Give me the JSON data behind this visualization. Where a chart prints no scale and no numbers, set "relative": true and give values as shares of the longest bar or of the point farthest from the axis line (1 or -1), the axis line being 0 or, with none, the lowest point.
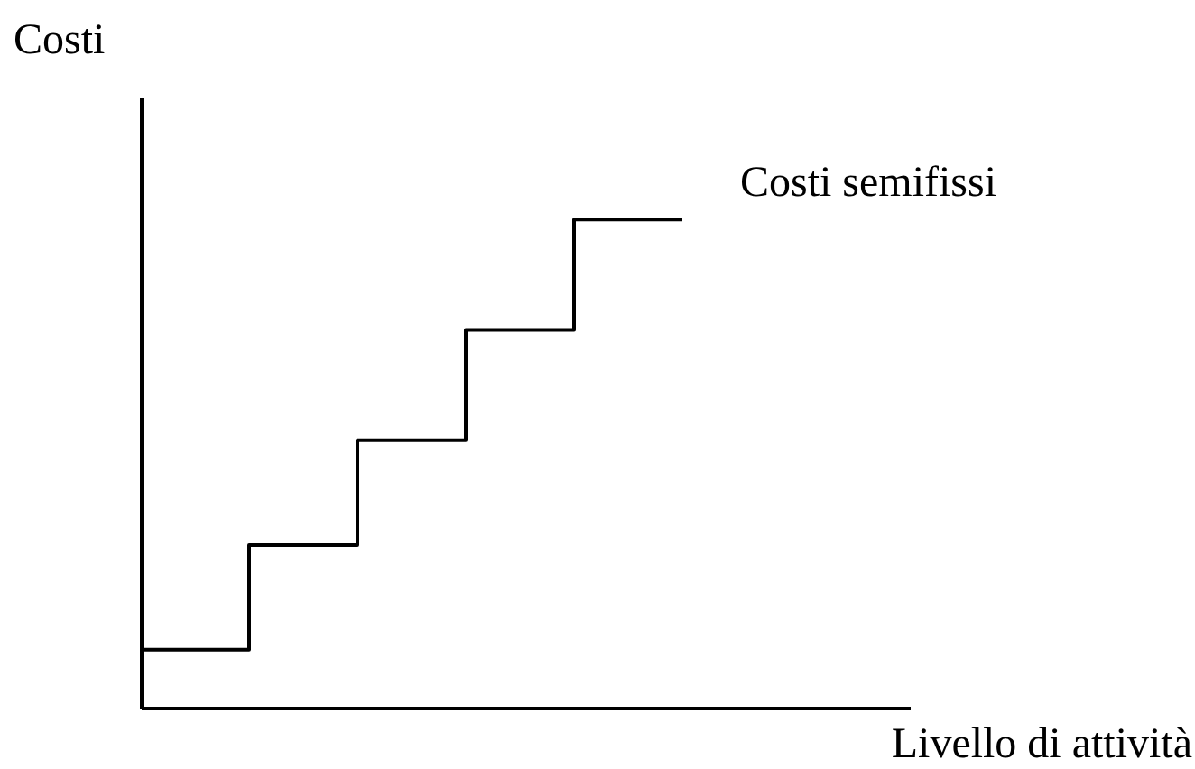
{
  "chart_data": {
    "type": "step",
    "relative": true,
    "xlabel": "Livello di attività",
    "ylabel": "Costi",
    "categories": [
      null,
      null,
      null,
      null,
      null,
      null
    ],
    "series": [
      {
        "name": "Costi semifissi",
        "color": "#000000",
        "values": [
          0.119,
          0.333,
          0.548,
          0.774,
          1,
          1
        ]
      }
    ]
  }
}
